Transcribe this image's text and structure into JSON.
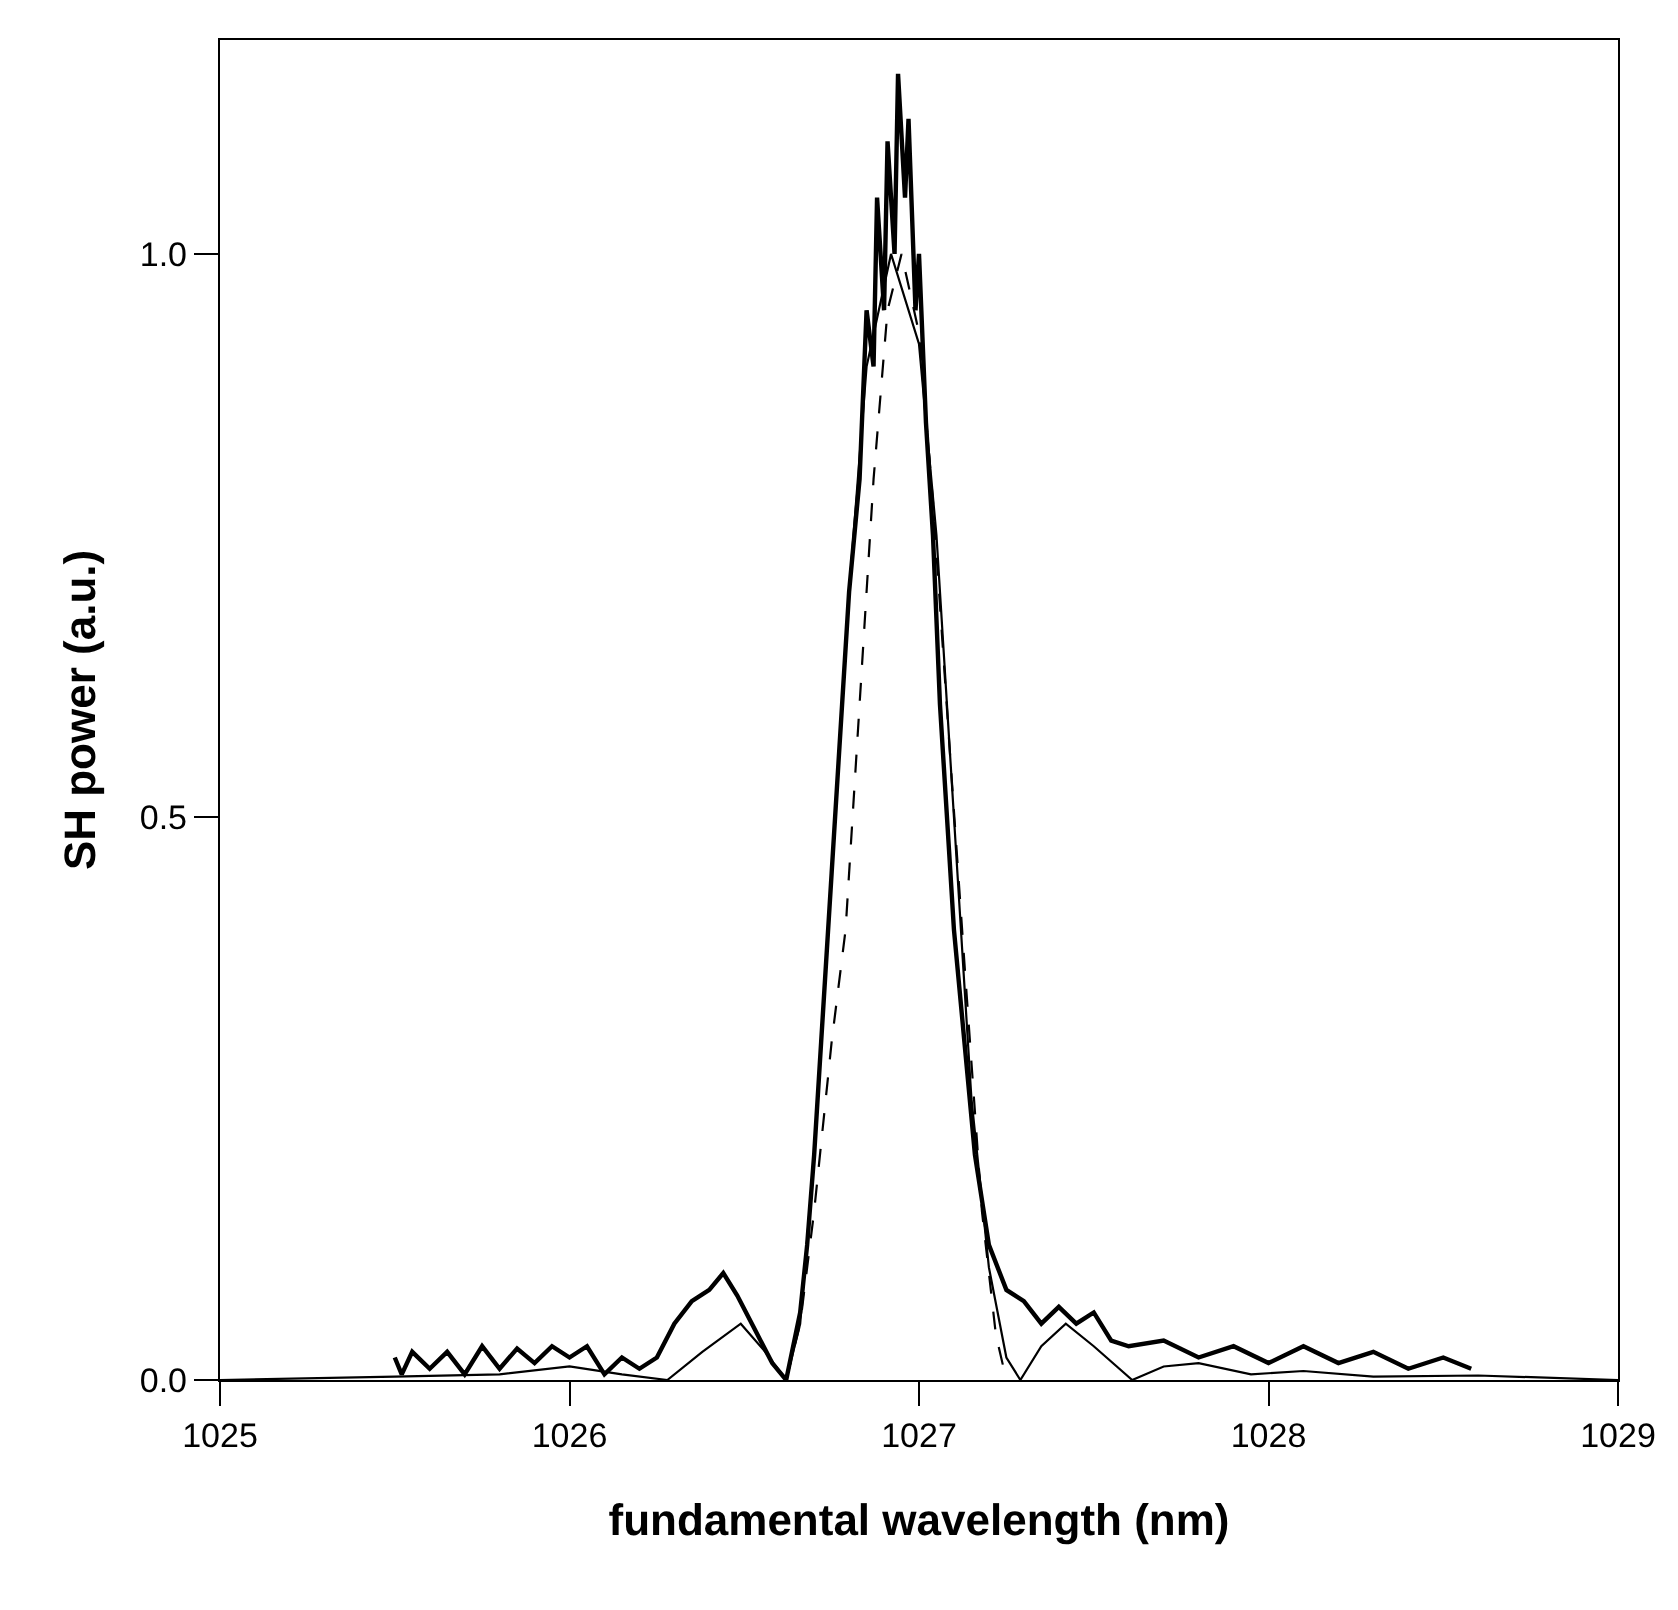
{
  "chart_data": {
    "type": "line",
    "xlabel": "fundamental wavelength (nm)",
    "ylabel": "SH power (a.u.)",
    "xlim": [
      1025,
      1029
    ],
    "xticks": [
      1025,
      1026,
      1027,
      1028,
      1029
    ],
    "ylim": [
      0,
      1.19
    ],
    "yticks": [
      {
        "value": 0,
        "label": "0.0"
      },
      {
        "value": 0.5,
        "label": "0.5"
      },
      {
        "value": 1.0,
        "label": "1.0"
      }
    ],
    "marker": "none",
    "series": [
      {
        "color": "#000000",
        "line_style": "solid",
        "x": [
          1025.5,
          1025.52,
          1025.55,
          1025.6,
          1025.65,
          1025.7,
          1025.75,
          1025.8,
          1025.85,
          1025.9,
          1025.95,
          1026.0,
          1026.05,
          1026.1,
          1026.15,
          1026.2,
          1026.25,
          1026.3,
          1026.35,
          1026.4,
          1026.44,
          1026.48,
          1026.53,
          1026.58,
          1026.62,
          1026.66,
          1026.68,
          1026.7,
          1026.72,
          1026.75,
          1026.78,
          1026.8,
          1026.83,
          1026.85,
          1026.87,
          1026.88,
          1026.9,
          1026.91,
          1026.93,
          1026.94,
          1026.96,
          1026.97,
          1026.99,
          1027.0,
          1027.02,
          1027.04,
          1027.06,
          1027.08,
          1027.1,
          1027.13,
          1027.16,
          1027.2,
          1027.25,
          1027.3,
          1027.35,
          1027.4,
          1027.45,
          1027.5,
          1027.55,
          1027.6,
          1027.7,
          1027.8,
          1027.9,
          1028.0,
          1028.1,
          1028.2,
          1028.3,
          1028.4,
          1028.5,
          1028.58
        ],
        "values": [
          0.02,
          0.005,
          0.025,
          0.01,
          0.025,
          0.005,
          0.03,
          0.01,
          0.028,
          0.015,
          0.03,
          0.02,
          0.03,
          0.005,
          0.02,
          0.01,
          0.02,
          0.05,
          0.07,
          0.08,
          0.095,
          0.075,
          0.045,
          0.015,
          0.0,
          0.06,
          0.12,
          0.2,
          0.3,
          0.45,
          0.6,
          0.7,
          0.8,
          0.95,
          0.9,
          1.05,
          0.95,
          1.1,
          1.0,
          1.16,
          1.05,
          1.12,
          0.95,
          1.0,
          0.85,
          0.75,
          0.6,
          0.5,
          0.4,
          0.3,
          0.2,
          0.12,
          0.08,
          0.07,
          0.05,
          0.065,
          0.05,
          0.06,
          0.035,
          0.03,
          0.035,
          0.02,
          0.03,
          0.015,
          0.03,
          0.015,
          0.025,
          0.01,
          0.02,
          0.01
        ]
      },
      {
        "color": "#000000",
        "line_style": "solid",
        "x": [
          1025.0,
          1025.5,
          1025.8,
          1026.0,
          1026.15,
          1026.28,
          1026.38,
          1026.49,
          1026.56,
          1026.62,
          1026.66,
          1026.7,
          1026.75,
          1026.8,
          1026.85,
          1026.92,
          1027.0,
          1027.05,
          1027.1,
          1027.15,
          1027.2,
          1027.25,
          1027.29,
          1027.35,
          1027.42,
          1027.5,
          1027.61,
          1027.7,
          1027.8,
          1027.95,
          1028.1,
          1028.3,
          1028.6,
          1029.0
        ],
        "values": [
          0.0,
          0.003,
          0.005,
          0.012,
          0.005,
          0.0,
          0.025,
          0.05,
          0.025,
          0.0,
          0.05,
          0.2,
          0.45,
          0.7,
          0.9,
          1.0,
          0.92,
          0.75,
          0.5,
          0.25,
          0.1,
          0.02,
          0.0,
          0.03,
          0.05,
          0.03,
          0.0,
          0.012,
          0.015,
          0.005,
          0.008,
          0.003,
          0.004,
          0.0
        ]
      },
      {
        "color": "#000000",
        "line_style": "dashed",
        "x": [
          1026.62,
          1026.66,
          1026.7,
          1026.75,
          1026.79,
          1026.83,
          1026.87,
          1026.91,
          1026.95,
          1027.0,
          1027.04,
          1027.09,
          1027.13,
          1027.18,
          1027.22,
          1027.25
        ],
        "values": [
          0.0,
          0.05,
          0.15,
          0.3,
          0.4,
          0.6,
          0.8,
          0.95,
          1.0,
          0.93,
          0.78,
          0.55,
          0.37,
          0.15,
          0.04,
          0.0
        ]
      }
    ]
  }
}
